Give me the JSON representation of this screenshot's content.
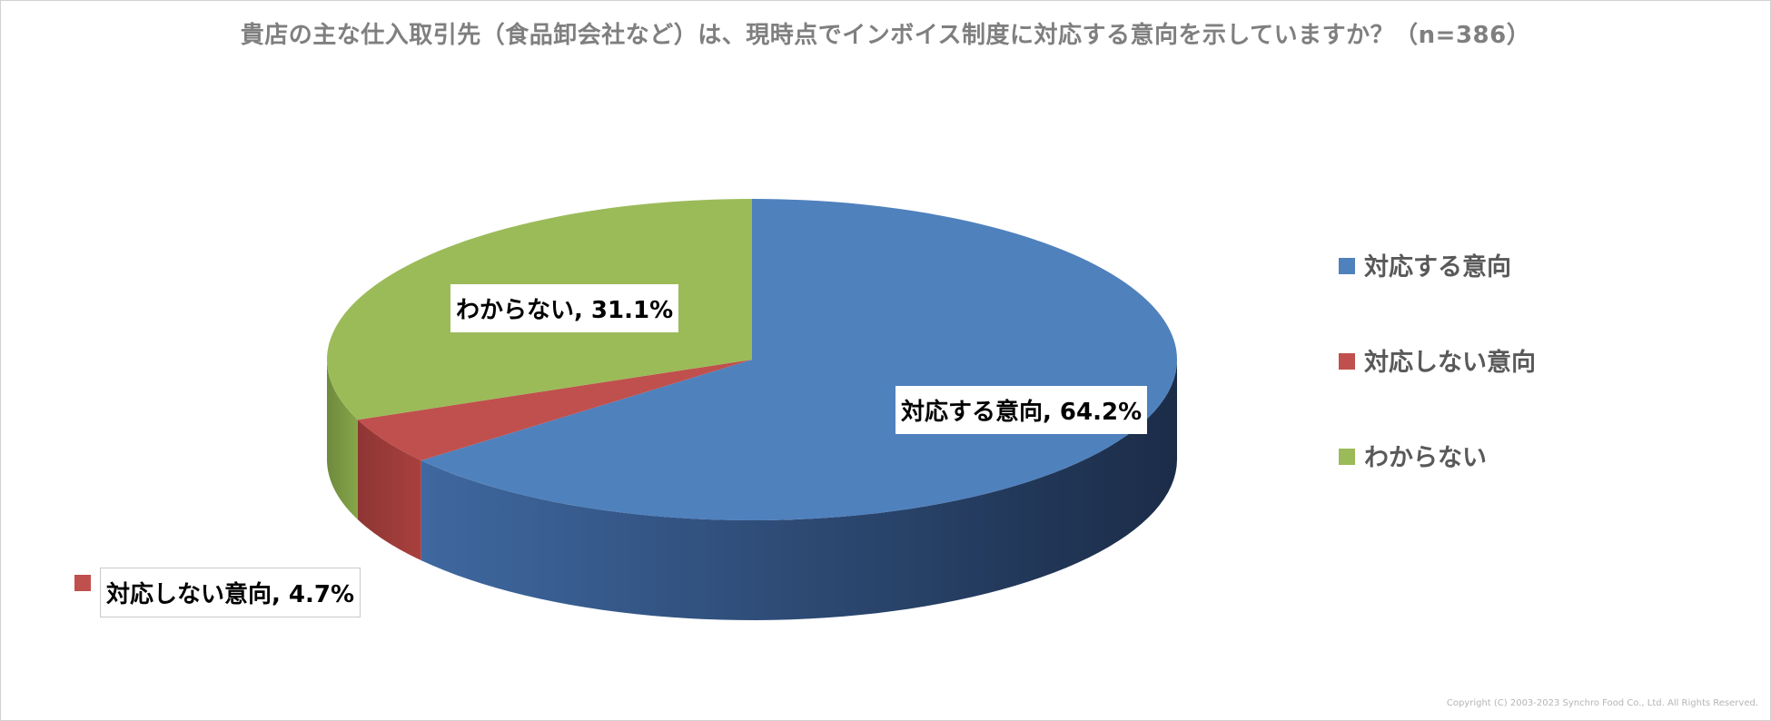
{
  "chart_data": {
    "type": "pie",
    "title": "貴店の主な仕入取引先（食品卸会社など）は、現時点でインボイス制度に対応する意向を示していますか？（n=386）",
    "slices": [
      {
        "name": "対応する意向",
        "value": 64.2,
        "label": "対応する意向, 64.2%",
        "color": "#4F81BD",
        "side_dark": "#1F3150",
        "side_light": "#3F68A0"
      },
      {
        "name": "対応しない意向",
        "value": 4.7,
        "label": "対応しない意向, 4.7%",
        "color": "#C0504D",
        "side_dark": "#7A2E2C",
        "side_light": "#A8403D"
      },
      {
        "name": "わからない",
        "value": 31.1,
        "label": "わからない, 31.1%",
        "color": "#9BBB59",
        "side_dark": "#5F7A33",
        "side_light": "#86A548"
      }
    ],
    "legend_position": "right"
  },
  "footer": {
    "copyright": "Copyright (C) 2003-2023 Synchro Food Co., Ltd. All Rights Reserved."
  }
}
